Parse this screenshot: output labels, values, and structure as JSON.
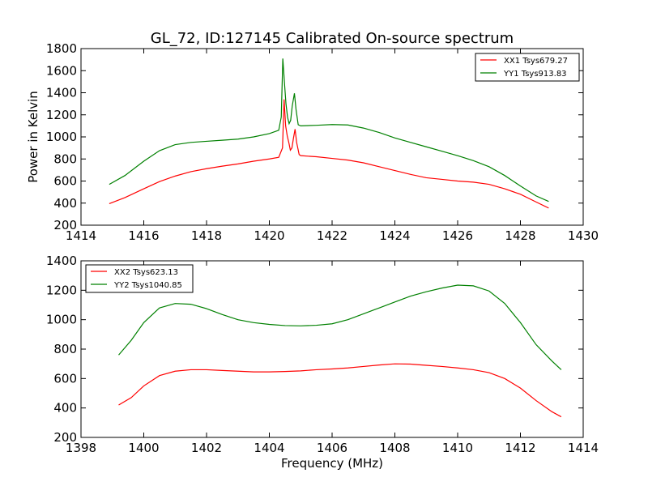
{
  "chart_data": [
    {
      "type": "line",
      "title": "GL_72, ID:127145 Calibrated On-source spectrum",
      "xlabel": "",
      "ylabel": "Power in Kelvin",
      "xlim": [
        1414,
        1430
      ],
      "ylim": [
        200,
        1800
      ],
      "xticks": [
        "1414",
        "1416",
        "1418",
        "1420",
        "1422",
        "1424",
        "1426",
        "1428",
        "1430"
      ],
      "yticks": [
        "200",
        "400",
        "600",
        "800",
        "1000",
        "1200",
        "1400",
        "1600",
        "1800"
      ],
      "legend_position": "top-right",
      "series": [
        {
          "name": "XX1 Tsys679.27",
          "color": "#ff0000",
          "points": [
            [
              1414.9,
              395
            ],
            [
              1415.4,
              450
            ],
            [
              1416.0,
              530
            ],
            [
              1416.5,
              595
            ],
            [
              1417.0,
              645
            ],
            [
              1417.5,
              685
            ],
            [
              1418.0,
              712
            ],
            [
              1418.5,
              735
            ],
            [
              1419.0,
              755
            ],
            [
              1419.5,
              780
            ],
            [
              1420.0,
              800
            ],
            [
              1420.3,
              815
            ],
            [
              1420.42,
              900
            ],
            [
              1420.47,
              1340
            ],
            [
              1420.52,
              1100
            ],
            [
              1420.57,
              1010
            ],
            [
              1420.62,
              950
            ],
            [
              1420.67,
              880
            ],
            [
              1420.72,
              900
            ],
            [
              1420.77,
              990
            ],
            [
              1420.82,
              1070
            ],
            [
              1420.87,
              950
            ],
            [
              1420.95,
              840
            ],
            [
              1421.0,
              830
            ],
            [
              1421.5,
              820
            ],
            [
              1422.0,
              805
            ],
            [
              1422.5,
              790
            ],
            [
              1423.0,
              765
            ],
            [
              1423.5,
              730
            ],
            [
              1424.0,
              695
            ],
            [
              1424.5,
              660
            ],
            [
              1425.0,
              630
            ],
            [
              1425.5,
              615
            ],
            [
              1426.0,
              600
            ],
            [
              1426.5,
              590
            ],
            [
              1427.0,
              570
            ],
            [
              1427.5,
              530
            ],
            [
              1428.0,
              480
            ],
            [
              1428.5,
              410
            ],
            [
              1428.9,
              355
            ]
          ]
        },
        {
          "name": "YY1 Tsys913.83",
          "color": "#008000",
          "points": [
            [
              1414.9,
              570
            ],
            [
              1415.4,
              650
            ],
            [
              1416.0,
              780
            ],
            [
              1416.5,
              875
            ],
            [
              1417.0,
              930
            ],
            [
              1417.5,
              950
            ],
            [
              1418.0,
              960
            ],
            [
              1418.5,
              970
            ],
            [
              1419.0,
              980
            ],
            [
              1419.5,
              1000
            ],
            [
              1420.0,
              1030
            ],
            [
              1420.3,
              1060
            ],
            [
              1420.38,
              1180
            ],
            [
              1420.43,
              1710
            ],
            [
              1420.48,
              1500
            ],
            [
              1420.53,
              1300
            ],
            [
              1420.58,
              1180
            ],
            [
              1420.63,
              1120
            ],
            [
              1420.68,
              1150
            ],
            [
              1420.73,
              1280
            ],
            [
              1420.8,
              1395
            ],
            [
              1420.85,
              1250
            ],
            [
              1420.92,
              1110
            ],
            [
              1421.0,
              1100
            ],
            [
              1421.5,
              1105
            ],
            [
              1422.0,
              1112
            ],
            [
              1422.5,
              1108
            ],
            [
              1423.0,
              1080
            ],
            [
              1423.5,
              1040
            ],
            [
              1424.0,
              990
            ],
            [
              1424.5,
              950
            ],
            [
              1425.0,
              910
            ],
            [
              1425.5,
              870
            ],
            [
              1426.0,
              830
            ],
            [
              1426.5,
              785
            ],
            [
              1427.0,
              730
            ],
            [
              1427.5,
              650
            ],
            [
              1428.0,
              555
            ],
            [
              1428.5,
              465
            ],
            [
              1428.9,
              415
            ]
          ]
        }
      ]
    },
    {
      "type": "line",
      "title": "",
      "xlabel": "Frequency (MHz)",
      "ylabel": "",
      "xlim": [
        1398,
        1414
      ],
      "ylim": [
        200,
        1400
      ],
      "xticks": [
        "1398",
        "1400",
        "1402",
        "1404",
        "1406",
        "1408",
        "1410",
        "1412",
        "1414"
      ],
      "yticks": [
        "200",
        "400",
        "600",
        "800",
        "1000",
        "1200",
        "1400"
      ],
      "legend_position": "top-left",
      "series": [
        {
          "name": "XX2 Tsys623.13",
          "color": "#ff0000",
          "points": [
            [
              1399.2,
              420
            ],
            [
              1399.6,
              470
            ],
            [
              1400.0,
              550
            ],
            [
              1400.5,
              620
            ],
            [
              1401.0,
              650
            ],
            [
              1401.5,
              660
            ],
            [
              1402.0,
              660
            ],
            [
              1402.5,
              655
            ],
            [
              1403.0,
              650
            ],
            [
              1403.5,
              645
            ],
            [
              1404.0,
              645
            ],
            [
              1404.5,
              648
            ],
            [
              1405.0,
              652
            ],
            [
              1405.5,
              660
            ],
            [
              1406.0,
              665
            ],
            [
              1406.5,
              672
            ],
            [
              1407.0,
              682
            ],
            [
              1407.5,
              692
            ],
            [
              1408.0,
              700
            ],
            [
              1408.5,
              698
            ],
            [
              1409.0,
              690
            ],
            [
              1409.5,
              682
            ],
            [
              1410.0,
              672
            ],
            [
              1410.5,
              660
            ],
            [
              1411.0,
              640
            ],
            [
              1411.5,
              600
            ],
            [
              1412.0,
              535
            ],
            [
              1412.5,
              450
            ],
            [
              1413.0,
              375
            ],
            [
              1413.3,
              340
            ]
          ]
        },
        {
          "name": "YY2 Tsys1040.85",
          "color": "#008000",
          "points": [
            [
              1399.2,
              760
            ],
            [
              1399.6,
              860
            ],
            [
              1400.0,
              980
            ],
            [
              1400.5,
              1080
            ],
            [
              1401.0,
              1110
            ],
            [
              1401.5,
              1105
            ],
            [
              1402.0,
              1075
            ],
            [
              1402.5,
              1035
            ],
            [
              1403.0,
              1000
            ],
            [
              1403.5,
              980
            ],
            [
              1404.0,
              968
            ],
            [
              1404.5,
              960
            ],
            [
              1405.0,
              958
            ],
            [
              1405.5,
              962
            ],
            [
              1406.0,
              972
            ],
            [
              1406.5,
              1000
            ],
            [
              1407.0,
              1040
            ],
            [
              1407.5,
              1080
            ],
            [
              1408.0,
              1120
            ],
            [
              1408.5,
              1160
            ],
            [
              1409.0,
              1190
            ],
            [
              1409.5,
              1215
            ],
            [
              1410.0,
              1235
            ],
            [
              1410.5,
              1230
            ],
            [
              1411.0,
              1195
            ],
            [
              1411.5,
              1110
            ],
            [
              1412.0,
              980
            ],
            [
              1412.5,
              830
            ],
            [
              1413.0,
              720
            ],
            [
              1413.3,
              660
            ]
          ]
        }
      ]
    }
  ]
}
